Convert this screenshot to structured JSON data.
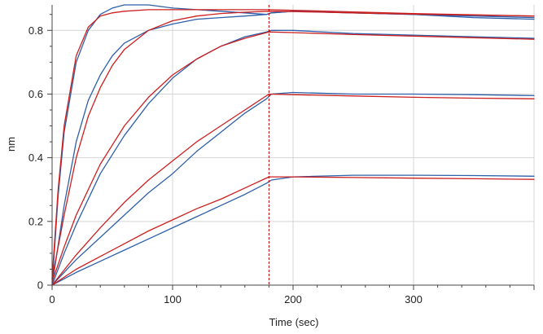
{
  "chart_data": {
    "type": "line",
    "title": "",
    "xlabel": "Time (sec)",
    "ylabel": "nm",
    "xlim": [
      0,
      400
    ],
    "ylim": [
      0,
      0.88
    ],
    "x_ticks": [
      0,
      100,
      200,
      300
    ],
    "x_tick_labels": [
      "0",
      "100",
      "200",
      "300"
    ],
    "y_ticks": [
      0,
      0.2,
      0.4,
      0.6,
      0.8
    ],
    "y_tick_labels": [
      "0",
      "0.2",
      "0.4",
      "0.6",
      "0.8"
    ],
    "grid": true,
    "legend": "none",
    "annotations": [
      {
        "type": "vertical-dashed-line",
        "x": 180,
        "color": "#c00000"
      }
    ],
    "colors": {
      "measured": "#2e5fa8",
      "fit": "#cc1f1f",
      "grid": "#d4d4d4",
      "axis": "#444444"
    },
    "series": [
      {
        "kind": "measured",
        "color": "#2e5fa8",
        "x": [
          0,
          5,
          10,
          20,
          30,
          40,
          50,
          60,
          80,
          100,
          140,
          178,
          182,
          200,
          250,
          300,
          350,
          400
        ],
        "y": [
          0,
          0.28,
          0.48,
          0.7,
          0.8,
          0.85,
          0.87,
          0.88,
          0.88,
          0.87,
          0.86,
          0.85,
          0.855,
          0.86,
          0.855,
          0.85,
          0.84,
          0.835
        ]
      },
      {
        "kind": "fit",
        "color": "#cc1f1f",
        "x": [
          0,
          5,
          10,
          20,
          30,
          40,
          50,
          60,
          80,
          100,
          140,
          180,
          200,
          250,
          300,
          350,
          400
        ],
        "y": [
          0.02,
          0.3,
          0.5,
          0.72,
          0.81,
          0.845,
          0.855,
          0.86,
          0.865,
          0.865,
          0.865,
          0.865,
          0.863,
          0.858,
          0.853,
          0.849,
          0.845
        ]
      },
      {
        "kind": "measured",
        "color": "#2e5fa8",
        "x": [
          0,
          10,
          20,
          30,
          40,
          50,
          60,
          80,
          100,
          120,
          140,
          160,
          178,
          182,
          200,
          250,
          300,
          350,
          400
        ],
        "y": [
          0,
          0.25,
          0.45,
          0.58,
          0.66,
          0.72,
          0.76,
          0.8,
          0.82,
          0.835,
          0.84,
          0.845,
          0.85,
          0.855,
          0.86,
          0.855,
          0.85,
          0.845,
          0.84
        ]
      },
      {
        "kind": "fit",
        "color": "#cc1f1f",
        "x": [
          0,
          10,
          20,
          30,
          40,
          50,
          60,
          80,
          100,
          120,
          140,
          160,
          180,
          200,
          250,
          300,
          350,
          400
        ],
        "y": [
          0.02,
          0.22,
          0.4,
          0.53,
          0.62,
          0.69,
          0.74,
          0.8,
          0.83,
          0.845,
          0.853,
          0.857,
          0.86,
          0.859,
          0.855,
          0.851,
          0.848,
          0.845
        ]
      },
      {
        "kind": "measured",
        "color": "#2e5fa8",
        "x": [
          0,
          10,
          20,
          40,
          60,
          80,
          100,
          120,
          140,
          160,
          178,
          182,
          200,
          250,
          300,
          350,
          400
        ],
        "y": [
          0,
          0.1,
          0.19,
          0.35,
          0.47,
          0.57,
          0.65,
          0.71,
          0.75,
          0.78,
          0.795,
          0.8,
          0.8,
          0.79,
          0.785,
          0.78,
          0.775
        ]
      },
      {
        "kind": "fit",
        "color": "#cc1f1f",
        "x": [
          0,
          10,
          20,
          40,
          60,
          80,
          100,
          120,
          140,
          160,
          180,
          200,
          250,
          300,
          350,
          400
        ],
        "y": [
          0.01,
          0.12,
          0.22,
          0.38,
          0.5,
          0.59,
          0.66,
          0.71,
          0.75,
          0.775,
          0.795,
          0.793,
          0.787,
          0.782,
          0.777,
          0.772
        ]
      },
      {
        "kind": "measured",
        "color": "#2e5fa8",
        "x": [
          0,
          20,
          40,
          60,
          80,
          100,
          120,
          140,
          160,
          178,
          182,
          200,
          250,
          300,
          350,
          400
        ],
        "y": [
          0,
          0.08,
          0.15,
          0.22,
          0.29,
          0.35,
          0.42,
          0.48,
          0.54,
          0.585,
          0.6,
          0.605,
          0.6,
          0.6,
          0.598,
          0.595
        ]
      },
      {
        "kind": "fit",
        "color": "#cc1f1f",
        "x": [
          0,
          20,
          40,
          60,
          80,
          100,
          120,
          140,
          160,
          180,
          200,
          250,
          300,
          350,
          400
        ],
        "y": [
          0,
          0.095,
          0.18,
          0.26,
          0.33,
          0.39,
          0.45,
          0.5,
          0.55,
          0.6,
          0.598,
          0.594,
          0.59,
          0.587,
          0.585
        ]
      },
      {
        "kind": "measured",
        "color": "#2e5fa8",
        "x": [
          0,
          20,
          40,
          60,
          80,
          100,
          120,
          140,
          160,
          178,
          182,
          200,
          250,
          300,
          350,
          400
        ],
        "y": [
          0,
          0.04,
          0.075,
          0.11,
          0.145,
          0.18,
          0.215,
          0.25,
          0.285,
          0.32,
          0.33,
          0.34,
          0.345,
          0.345,
          0.344,
          0.342
        ]
      },
      {
        "kind": "fit",
        "color": "#cc1f1f",
        "x": [
          0,
          20,
          40,
          60,
          80,
          100,
          120,
          140,
          160,
          180,
          200,
          250,
          300,
          350,
          400
        ],
        "y": [
          0,
          0.05,
          0.09,
          0.13,
          0.17,
          0.205,
          0.24,
          0.27,
          0.305,
          0.34,
          0.34,
          0.338,
          0.336,
          0.334,
          0.332
        ]
      }
    ]
  }
}
